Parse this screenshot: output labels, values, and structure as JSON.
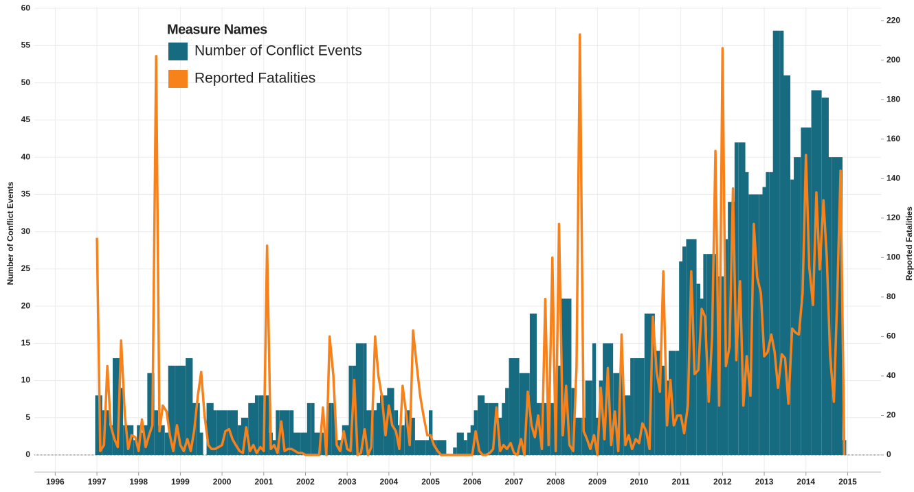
{
  "chart_data": {
    "type": "bar_line",
    "legend_title": "Measure Names",
    "legend": "upper left",
    "ylabel": "Number of Conflict Events",
    "y2label": "Reported Fatalities",
    "grid": true,
    "xlim": [
      1995.5,
      2015.8
    ],
    "xticks": [
      1996,
      1997,
      1998,
      1999,
      2000,
      2001,
      2002,
      2003,
      2004,
      2005,
      2006,
      2007,
      2008,
      2009,
      2010,
      2011,
      2012,
      2013,
      2014,
      2015
    ],
    "ylim": [
      -2.3,
      60.2
    ],
    "yticks": [
      0,
      5,
      10,
      15,
      20,
      25,
      30,
      35,
      40,
      45,
      50,
      55,
      60
    ],
    "y2lim": [
      -8.7,
      227
    ],
    "y2ticks": [
      0,
      20,
      40,
      60,
      80,
      100,
      120,
      140,
      160,
      180,
      200,
      220
    ],
    "x": [
      1997.0,
      1997.08,
      1997.17,
      1997.25,
      1997.33,
      1997.42,
      1997.5,
      1997.58,
      1997.67,
      1997.75,
      1997.83,
      1997.92,
      1998.0,
      1998.08,
      1998.17,
      1998.25,
      1998.33,
      1998.42,
      1998.5,
      1998.58,
      1998.67,
      1998.75,
      1998.83,
      1998.92,
      1999.0,
      1999.08,
      1999.17,
      1999.25,
      1999.33,
      1999.42,
      1999.5,
      1999.58,
      1999.67,
      1999.75,
      1999.83,
      1999.92,
      2000.0,
      2000.08,
      2000.17,
      2000.25,
      2000.33,
      2000.42,
      2000.5,
      2000.58,
      2000.67,
      2000.75,
      2000.83,
      2000.92,
      2001.0,
      2001.08,
      2001.17,
      2001.25,
      2001.33,
      2001.42,
      2001.5,
      2001.58,
      2001.67,
      2001.75,
      2001.83,
      2001.92,
      2002.0,
      2002.08,
      2002.17,
      2002.25,
      2002.33,
      2002.42,
      2002.5,
      2002.58,
      2002.67,
      2002.75,
      2002.83,
      2002.92,
      2003.0,
      2003.08,
      2003.17,
      2003.25,
      2003.33,
      2003.42,
      2003.5,
      2003.58,
      2003.67,
      2003.75,
      2003.83,
      2003.92,
      2004.0,
      2004.08,
      2004.17,
      2004.25,
      2004.33,
      2004.42,
      2004.5,
      2004.58,
      2004.67,
      2004.75,
      2004.83,
      2004.92,
      2005.0,
      2005.08,
      2005.17,
      2005.25,
      2005.33,
      2005.42,
      2005.5,
      2005.58,
      2005.67,
      2005.75,
      2005.83,
      2005.92,
      2006.0,
      2006.08,
      2006.17,
      2006.25,
      2006.33,
      2006.42,
      2006.5,
      2006.58,
      2006.67,
      2006.75,
      2006.83,
      2006.92,
      2007.0,
      2007.08,
      2007.17,
      2007.25,
      2007.33,
      2007.42,
      2007.5,
      2007.58,
      2007.67,
      2007.75,
      2007.83,
      2007.92,
      2008.0,
      2008.08,
      2008.17,
      2008.25,
      2008.33,
      2008.42,
      2008.5,
      2008.58,
      2008.67,
      2008.75,
      2008.83,
      2008.92,
      2009.0,
      2009.08,
      2009.17,
      2009.25,
      2009.33,
      2009.42,
      2009.5,
      2009.58,
      2009.67,
      2009.75,
      2009.83,
      2009.92,
      2010.0,
      2010.08,
      2010.17,
      2010.25,
      2010.33,
      2010.42,
      2010.5,
      2010.58,
      2010.67,
      2010.75,
      2010.83,
      2010.92,
      2011.0,
      2011.08,
      2011.17,
      2011.25,
      2011.33,
      2011.42,
      2011.5,
      2011.58,
      2011.67,
      2011.75,
      2011.83,
      2011.92,
      2012.0,
      2012.08,
      2012.17,
      2012.25,
      2012.33,
      2012.42,
      2012.5,
      2012.58,
      2012.67,
      2012.75,
      2012.83,
      2012.92,
      2013.0,
      2013.08,
      2013.17,
      2013.25,
      2013.33,
      2013.42,
      2013.5,
      2013.58,
      2013.67,
      2013.75,
      2013.83,
      2013.92,
      2014.0,
      2014.08,
      2014.17,
      2014.25,
      2014.33,
      2014.42,
      2014.5,
      2014.58,
      2014.67,
      2014.75,
      2014.83,
      2014.92
    ],
    "series": [
      {
        "name": "Number of Conflict Events",
        "color": "#176b81",
        "axis": "y",
        "values": [
          8,
          8,
          6,
          6,
          4,
          13,
          13,
          9,
          4,
          4,
          4,
          2,
          4,
          3,
          4,
          11,
          11,
          6,
          4,
          4,
          3,
          12,
          12,
          12,
          12,
          12,
          13,
          13,
          7,
          7,
          3,
          0,
          7,
          7,
          6,
          6,
          6,
          6,
          6,
          6,
          6,
          4,
          5,
          5,
          7,
          7,
          8,
          8,
          8,
          8,
          3,
          2,
          6,
          6,
          6,
          6,
          6,
          3,
          3,
          3,
          3,
          7,
          7,
          3,
          3,
          3,
          3,
          7,
          7,
          2,
          2,
          4,
          4,
          12,
          12,
          15,
          15,
          15,
          6,
          6,
          6,
          7,
          8,
          8,
          9,
          9,
          6,
          4,
          4,
          6,
          6,
          5,
          2,
          2,
          2,
          2,
          6,
          2,
          2,
          2,
          2,
          0,
          0,
          1,
          3,
          3,
          2,
          3,
          4,
          6,
          8,
          8,
          7,
          7,
          7,
          7,
          5,
          7,
          9,
          13,
          13,
          13,
          11,
          11,
          11,
          19,
          19,
          7,
          7,
          7,
          7,
          7,
          7,
          12,
          21,
          21,
          21,
          9,
          5,
          5,
          5,
          10,
          10,
          15,
          5,
          10,
          15,
          15,
          15,
          11,
          11,
          11,
          8,
          8,
          13,
          13,
          13,
          13,
          19,
          19,
          19,
          14,
          14,
          12,
          10,
          14,
          14,
          14,
          26,
          28,
          29,
          29,
          29,
          23,
          21,
          27,
          27,
          27,
          27,
          24,
          24,
          29,
          34,
          34,
          42,
          42,
          42,
          38,
          35,
          35,
          35,
          35,
          36,
          38,
          38,
          57,
          57,
          57,
          51,
          51,
          37,
          40,
          40,
          44,
          44,
          44,
          49,
          49,
          49,
          48,
          48,
          40,
          40,
          40,
          40,
          2
        ]
      },
      {
        "name": "Reported Fatalities",
        "color": "#f7821b",
        "axis": "y2",
        "values": [
          110,
          2,
          5,
          45,
          15,
          8,
          4,
          58,
          20,
          3,
          10,
          9,
          2,
          18,
          4,
          10,
          15,
          202,
          12,
          25,
          22,
          10,
          2,
          15,
          5,
          2,
          8,
          2,
          12,
          30,
          42,
          20,
          5,
          3,
          3,
          4,
          5,
          12,
          13,
          8,
          5,
          2,
          1,
          14,
          2,
          5,
          1,
          4,
          2,
          106,
          3,
          5,
          1,
          17,
          2,
          3,
          3,
          2,
          1,
          1,
          0,
          0,
          0,
          0,
          0,
          24,
          0,
          60,
          40,
          5,
          2,
          12,
          3,
          2,
          38,
          0,
          1,
          13,
          0,
          4,
          60,
          40,
          30,
          10,
          25,
          15,
          12,
          3,
          35,
          20,
          5,
          63,
          45,
          30,
          20,
          10,
          10,
          5,
          2,
          0,
          0,
          0,
          0,
          0,
          0,
          0,
          0,
          0,
          0,
          12,
          2,
          0,
          0,
          1,
          3,
          24,
          2,
          5,
          3,
          6,
          1,
          0,
          8,
          0,
          32,
          15,
          9,
          20,
          3,
          79,
          5,
          100,
          2,
          117,
          10,
          35,
          5,
          2,
          45,
          213,
          12,
          8,
          3,
          10,
          0,
          34,
          8,
          44,
          5,
          22,
          2,
          61,
          5,
          10,
          3,
          8,
          6,
          16,
          12,
          3,
          70,
          42,
          32,
          93,
          15,
          38,
          15,
          20,
          20,
          11,
          25,
          93,
          41,
          43,
          74,
          70,
          27,
          60,
          154,
          25,
          206,
          45,
          55,
          135,
          48,
          88,
          25,
          50,
          30,
          117,
          90,
          82,
          50,
          52,
          61,
          52,
          34,
          51,
          49,
          26,
          64,
          62,
          61,
          82,
          152,
          95,
          76,
          133,
          94,
          129,
          100,
          50,
          27,
          80,
          144,
          0
        ]
      }
    ]
  }
}
